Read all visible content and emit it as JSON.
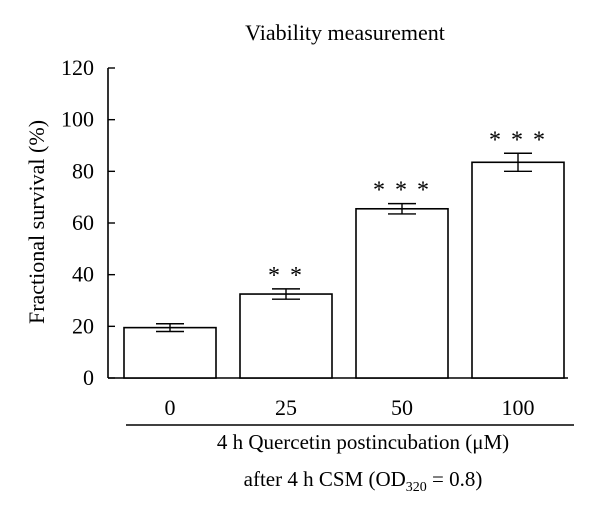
{
  "chart_data": {
    "type": "bar",
    "title": "Viability measurement",
    "ylabel": "Fractional survival (%)",
    "xlabel_line1": "4 h Quercetin postincubation (μM)",
    "xlabel_line2_prefix": "after 4 h CSM (OD",
    "xlabel_line2_sub": "320",
    "xlabel_line2_suffix": " = 0.8)",
    "categories": [
      "0",
      "25",
      "50",
      "100"
    ],
    "values": [
      19.5,
      32.5,
      65.5,
      83.5
    ],
    "errors": [
      1.5,
      2.0,
      2.0,
      3.5
    ],
    "significance": [
      "",
      "* *",
      "* * *",
      "* * *"
    ],
    "ylim": [
      0,
      120
    ],
    "yticks": [
      0,
      20,
      40,
      60,
      80,
      100,
      120
    ],
    "bar_fill": "#ffffff",
    "bar_stroke": "#000000",
    "grid": false
  }
}
